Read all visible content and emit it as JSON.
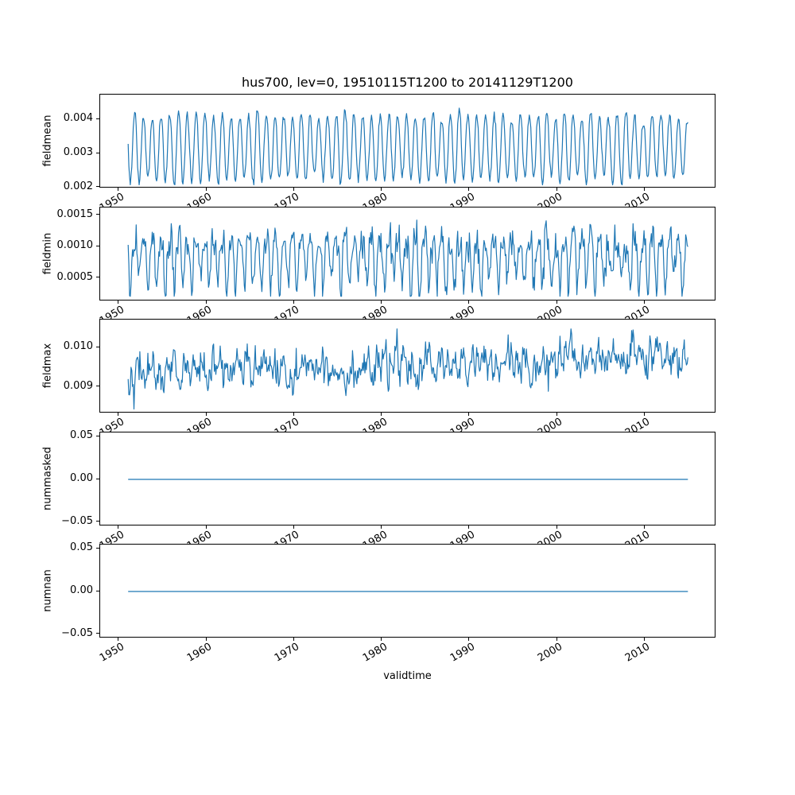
{
  "figure": {
    "title": "hus700, lev=0, 19510115T1200 to 20141129T1200",
    "xlabel": "validtime",
    "background": "#ffffff",
    "line_color": "#1f77b4",
    "text_color": "#000000"
  },
  "chart_data": [
    {
      "type": "line",
      "ylabel": "fieldmean",
      "x_start": 1951.0384,
      "x_end": 2014.9119,
      "points_per_year": 12,
      "xlim": [
        1947.85,
        2018.11
      ],
      "xticks": [
        1950,
        1960,
        1970,
        1980,
        1990,
        2000,
        2010
      ],
      "xtick_labels": [
        "1950",
        "1960",
        "1970",
        "1980",
        "1990",
        "2000",
        "2010"
      ],
      "yticks": [
        0.002,
        0.003,
        0.004
      ],
      "ytick_labels": [
        "0.002",
        "0.003",
        "0.004"
      ],
      "ylim": [
        0.001975,
        0.004725
      ],
      "gen": {
        "kind": "seasonal",
        "base": 0.00316,
        "amp": 0.00095,
        "sharp": 0.7,
        "phase": 0.54,
        "ampvar": 0.1,
        "harm2": 0,
        "noise": 7e-05,
        "ar": 0.3,
        "trend": 0,
        "clamp": [
          0.00208,
          0.00462
        ],
        "seed": 3
      }
    },
    {
      "type": "line",
      "ylabel": "fieldmin",
      "x_start": 1951.0384,
      "x_end": 2014.9119,
      "points_per_year": 12,
      "xlim": [
        1947.85,
        2018.11
      ],
      "xticks": [
        1950,
        1960,
        1970,
        1980,
        1990,
        2000,
        2010
      ],
      "xtick_labels": [
        "1950",
        "1960",
        "1970",
        "1980",
        "1990",
        "2000",
        "2010"
      ],
      "yticks": [
        0.0005,
        0.001,
        0.0015
      ],
      "ytick_labels": [
        "0.0005",
        "0.0010",
        "0.0015"
      ],
      "ylim": [
        0.00013,
        0.00162
      ],
      "gen": {
        "kind": "seasonal",
        "base": 0.00082,
        "amp": 0.00036,
        "sharp": 1,
        "phase": 0.54,
        "ampvar": 0.15,
        "harm2": 0.35,
        "noise": 0.00013,
        "ar": 0.25,
        "trend": 0,
        "clamp": [
          0.00021,
          0.00153
        ],
        "seed": 17
      }
    },
    {
      "type": "line",
      "ylabel": "fieldmax",
      "x_start": 1951.0384,
      "x_end": 2014.9119,
      "points_per_year": 12,
      "xlim": [
        1947.85,
        2018.11
      ],
      "xticks": [
        1950,
        1960,
        1970,
        1980,
        1990,
        2000,
        2010
      ],
      "xtick_labels": [
        "1950",
        "1960",
        "1970",
        "1980",
        "1990",
        "2000",
        "2010"
      ],
      "yticks": [
        0.009,
        0.01
      ],
      "ytick_labels": [
        "0.009",
        "0.010"
      ],
      "ylim": [
        0.00832,
        0.01072
      ],
      "gen": {
        "kind": "seasonal",
        "base": 0.00953,
        "amp": 9e-05,
        "sharp": 1,
        "phase": 0.3,
        "ampvar": 0,
        "harm2": 0,
        "noise": 0.00024,
        "ar": 0.5,
        "trend": 5.5e-06,
        "clamp": [
          0.00841,
          0.01063
        ],
        "seed": 42
      }
    },
    {
      "type": "line",
      "ylabel": "nummasked",
      "x_start": 1951.0384,
      "x_end": 2014.9119,
      "points_per_year": 12,
      "xlim": [
        1947.85,
        2018.11
      ],
      "xticks": [
        1950,
        1960,
        1970,
        1980,
        1990,
        2000,
        2010
      ],
      "xtick_labels": [
        "1950",
        "1960",
        "1970",
        "1980",
        "1990",
        "2000",
        "2010"
      ],
      "yticks": [
        -0.05,
        0,
        0.05
      ],
      "ytick_labels": [
        "−0.05",
        "0.00",
        "0.05"
      ],
      "ylim": [
        -0.055,
        0.055
      ],
      "gen": {
        "kind": "constant",
        "value": 0,
        "seed": 1
      }
    },
    {
      "type": "line",
      "ylabel": "numnan",
      "x_start": 1951.0384,
      "x_end": 2014.9119,
      "points_per_year": 12,
      "xlim": [
        1947.85,
        2018.11
      ],
      "xticks": [
        1950,
        1960,
        1970,
        1980,
        1990,
        2000,
        2010
      ],
      "xtick_labels": [
        "1950",
        "1960",
        "1970",
        "1980",
        "1990",
        "2000",
        "2010"
      ],
      "yticks": [
        -0.05,
        0,
        0.05
      ],
      "ytick_labels": [
        "−0.05",
        "0.00",
        "0.05"
      ],
      "ylim": [
        -0.055,
        0.055
      ],
      "gen": {
        "kind": "constant",
        "value": 0,
        "seed": 2
      }
    }
  ]
}
